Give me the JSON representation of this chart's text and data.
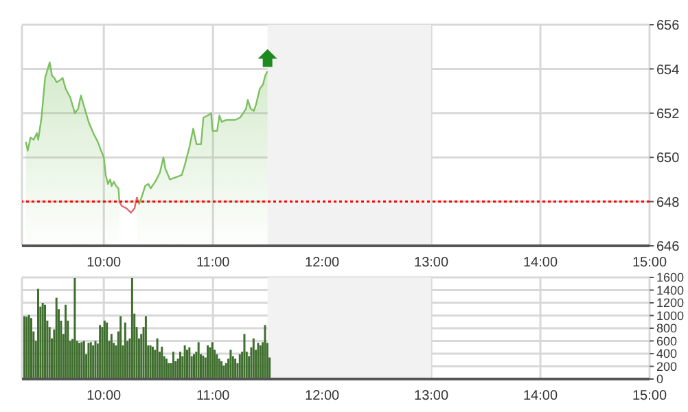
{
  "chart_data": [
    {
      "type": "area",
      "xlim": [
        9.25,
        15
      ],
      "xticks": [
        {
          "value": 10,
          "label": "10:00"
        },
        {
          "value": 11,
          "label": "11:00"
        },
        {
          "value": 12,
          "label": "12:00"
        },
        {
          "value": 13,
          "label": "13:00"
        },
        {
          "value": 14,
          "label": "14:00"
        },
        {
          "value": 15,
          "label": "15:00"
        }
      ],
      "ylim": [
        646,
        656
      ],
      "yticks": [
        646,
        648,
        650,
        652,
        654,
        656
      ],
      "grid": true,
      "ref_lines": [
        {
          "axis": "y",
          "value": 648,
          "color": "#ff0000",
          "line_style": "dotted"
        }
      ],
      "bands": [
        {
          "axis": "x",
          "from": 11.5,
          "to": 13,
          "color": "#f2f2f2"
        }
      ],
      "series": [
        {
          "type": "area",
          "color": "#7cc061",
          "x": [
            9.286,
            9.303,
            9.328,
            9.357,
            9.387,
            9.399,
            9.429,
            9.462,
            9.504,
            9.525,
            9.546,
            9.567,
            9.601,
            9.622,
            9.651,
            9.693,
            9.735,
            9.765,
            9.79,
            9.819,
            9.861,
            9.903,
            9.945,
            9.975,
            10.0,
            10.017,
            10.038,
            10.059,
            10.071,
            10.092,
            10.113,
            10.134,
            10.143,
            10.164,
            10.206,
            10.248,
            10.282,
            10.303,
            10.324,
            10.353,
            10.378,
            10.408,
            10.429,
            10.471,
            10.513,
            10.546,
            10.563,
            10.605,
            10.66,
            10.714,
            10.744,
            10.786,
            10.819,
            10.849,
            10.891,
            10.912,
            10.954,
            10.983,
            10.996,
            11.038,
            11.059,
            11.08,
            11.122,
            11.164,
            11.206,
            11.248,
            11.277,
            11.303,
            11.319,
            11.345,
            11.374,
            11.395,
            11.429,
            11.458,
            11.479,
            11.5
          ],
          "values": [
            650.7,
            650.3,
            650.9,
            650.8,
            651.1,
            650.8,
            651.8,
            653.6,
            654.3,
            653.7,
            653.6,
            653.4,
            653.5,
            653.6,
            653.1,
            652.7,
            652.0,
            652.2,
            652.8,
            652.3,
            651.6,
            651.1,
            650.7,
            650.3,
            650.0,
            649.2,
            648.8,
            649.0,
            648.7,
            648.9,
            648.7,
            648.6,
            648.0,
            null,
            null,
            null,
            null,
            648.2,
            647.9,
            648.3,
            648.7,
            648.8,
            648.6,
            648.9,
            649.3,
            650.0,
            649.5,
            649.0,
            649.1,
            649.2,
            649.7,
            650.5,
            651.3,
            650.6,
            650.6,
            651.8,
            651.9,
            652.0,
            651.2,
            651.2,
            651.9,
            651.6,
            651.7,
            651.7,
            651.7,
            651.8,
            652.0,
            652.2,
            652.6,
            652.2,
            652.1,
            652.4,
            653.1,
            653.3,
            653.7,
            653.9
          ]
        },
        {
          "type": "line",
          "color": "#e0636b",
          "x": [
            10.143,
            10.164,
            10.206,
            10.248,
            10.282,
            10.303
          ],
          "values": [
            648.0,
            647.8,
            647.7,
            647.5,
            647.7,
            648.2
          ]
        }
      ]
    },
    {
      "type": "bar",
      "xlim": [
        9.25,
        15
      ],
      "xticks": [
        {
          "value": 10,
          "label": "10:00"
        },
        {
          "value": 11,
          "label": "11:00"
        },
        {
          "value": 12,
          "label": "12:00"
        },
        {
          "value": 13,
          "label": "13:00"
        },
        {
          "value": 14,
          "label": "14:00"
        },
        {
          "value": 15,
          "label": "15:00"
        }
      ],
      "ylim": [
        0,
        1600
      ],
      "yticks": [
        0,
        200,
        400,
        600,
        800,
        1000,
        1200,
        1400,
        1600
      ],
      "grid": true,
      "bands": [
        {
          "axis": "x",
          "from": 11.5,
          "to": 13,
          "color": "#f2f2f2"
        }
      ],
      "x": [
        9.273,
        9.294,
        9.315,
        9.336,
        9.357,
        9.378,
        9.399,
        9.42,
        9.441,
        9.462,
        9.483,
        9.504,
        9.525,
        9.546,
        9.567,
        9.588,
        9.609,
        9.63,
        9.651,
        9.672,
        9.693,
        9.714,
        9.735,
        9.756,
        9.777,
        9.798,
        9.819,
        9.84,
        9.861,
        9.882,
        9.903,
        9.924,
        9.945,
        9.966,
        9.987,
        10.008,
        10.029,
        10.05,
        10.071,
        10.092,
        10.113,
        10.134,
        10.155,
        10.176,
        10.197,
        10.218,
        10.239,
        10.26,
        10.281,
        10.302,
        10.323,
        10.344,
        10.365,
        10.386,
        10.407,
        10.428,
        10.449,
        10.47,
        10.491,
        10.512,
        10.533,
        10.554,
        10.575,
        10.596,
        10.617,
        10.638,
        10.659,
        10.68,
        10.701,
        10.722,
        10.743,
        10.764,
        10.785,
        10.806,
        10.827,
        10.848,
        10.869,
        10.89,
        10.911,
        10.932,
        10.953,
        10.974,
        10.995,
        11.016,
        11.037,
        11.058,
        11.079,
        11.1,
        11.121,
        11.142,
        11.163,
        11.184,
        11.205,
        11.226,
        11.247,
        11.268,
        11.289,
        11.31,
        11.331,
        11.352,
        11.373,
        11.394,
        11.415,
        11.436,
        11.457,
        11.478,
        11.499,
        11.52
      ],
      "series": [
        {
          "color": "#3f6e2e",
          "values": [
            990,
            980,
            1010,
            960,
            750,
            600,
            1420,
            1140,
            1200,
            1170,
            920,
            820,
            640,
            780,
            1280,
            1100,
            920,
            710,
            1170,
            920,
            600,
            630,
            1590,
            600,
            570,
            580,
            600,
            390,
            570,
            580,
            530,
            600,
            560,
            850,
            820,
            920,
            890,
            600,
            710,
            570,
            530,
            750,
            990,
            530,
            890,
            600,
            640,
            1590,
            1030,
            820,
            640,
            710,
            820,
            990,
            530,
            530,
            510,
            460,
            640,
            430,
            510,
            360,
            320,
            250,
            250,
            430,
            280,
            320,
            430,
            360,
            530,
            460,
            500,
            360,
            390,
            430,
            580,
            390,
            370,
            340,
            530,
            500,
            580,
            460,
            390,
            320,
            280,
            210,
            250,
            320,
            460,
            360,
            320,
            250,
            390,
            430,
            710,
            430,
            360,
            500,
            640,
            460,
            570,
            530,
            580,
            850,
            570,
            340
          ]
        }
      ]
    }
  ]
}
